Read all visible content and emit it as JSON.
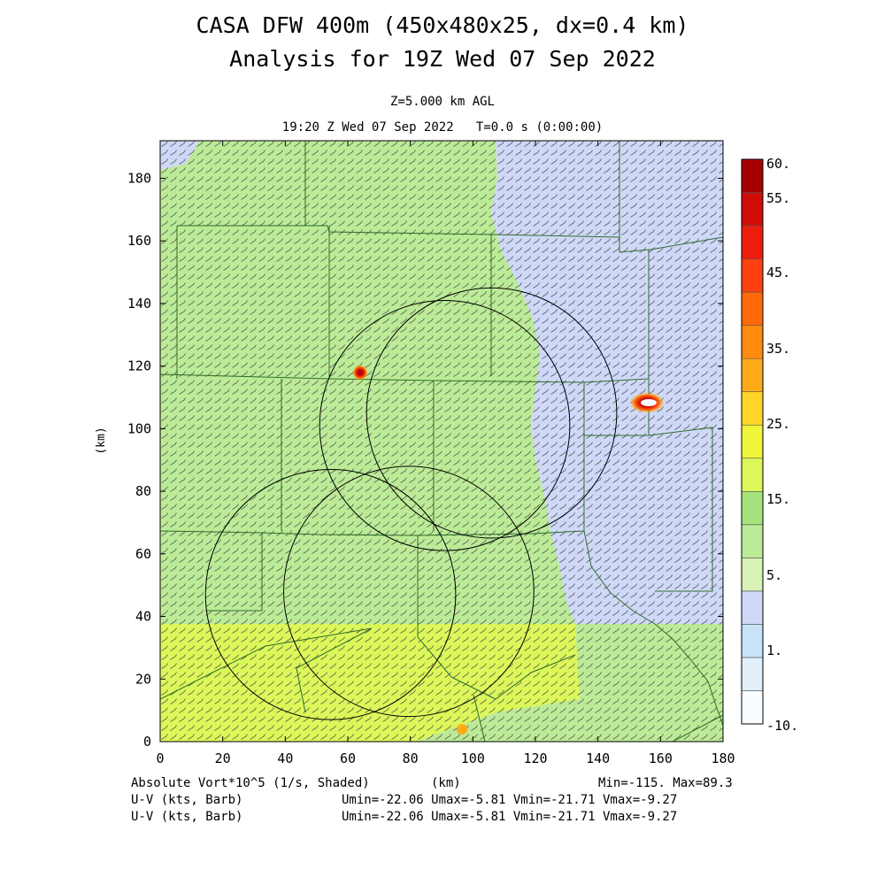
{
  "header": {
    "title_line1": "CASA DFW 400m (450x480x25, dx=0.4 km)",
    "title_line2": "Analysis for 19Z Wed 07 Sep 2022",
    "level": "Z=5.000 km AGL",
    "valid_time": "19:20 Z Wed 07 Sep 2022   T=0.0 s (0:00:00)"
  },
  "footer": {
    "field1": "Absolute Vort*10^5 (1/s, Shaded)",
    "xunit": "(km)",
    "minmax": "Min=-115. Max=89.3",
    "field2": "U-V (kts, Barb)",
    "field3": "U-V (kts, Barb)",
    "stats2": "Umin=-22.06 Umax=-5.81 Vmin=-21.71 Vmax=-9.27",
    "stats3": "Umin=-22.06 Umax=-5.81 Vmin=-21.71 Vmax=-9.27"
  },
  "chart_data": {
    "type": "heatmap",
    "xlabel": "(km)",
    "ylabel": "(km)",
    "xlim": [
      0,
      180
    ],
    "ylim": [
      0,
      192
    ],
    "xticks": [
      "0",
      "20",
      "40",
      "60",
      "80",
      "100",
      "120",
      "140",
      "160",
      "180"
    ],
    "yticks": [
      "0",
      "20",
      "40",
      "60",
      "80",
      "100",
      "120",
      "140",
      "160",
      "180"
    ],
    "colorbar": {
      "labels": [
        "60.",
        "55.",
        "45.",
        "35.",
        "25.",
        "15.",
        "5.",
        "1.",
        "-10."
      ],
      "colors": [
        "#fafdff",
        "#e1f0fb",
        "#c8e3f7",
        "#cfd8f7",
        "#d7f3b7",
        "#bceb97",
        "#a6e37c",
        "#dcf75a",
        "#eef53a",
        "#ffd52a",
        "#ffaa1a",
        "#ff8a10",
        "#ff6a08",
        "#ff4010",
        "#ee1c0c",
        "#d00c08",
        "#a80000"
      ]
    },
    "range_rings": [
      {
        "center_km": [
          54.5,
          47
        ],
        "radius_km": 40
      },
      {
        "center_km": [
          79.5,
          48
        ],
        "radius_km": 40
      },
      {
        "center_km": [
          91,
          101
        ],
        "radius_km": 40
      },
      {
        "center_km": [
          106,
          105
        ],
        "radius_km": 40
      }
    ],
    "regions": [
      {
        "name": "base green",
        "value_band": "5 to 15",
        "color": "#bceb97"
      },
      {
        "name": "northeast light-blue area",
        "value_band": "1 to 5",
        "color": "#cfd8f7"
      },
      {
        "name": "southwest yellow-green area",
        "value_band": "15 to 25",
        "color": "#dcf75a"
      }
    ],
    "features": [
      {
        "label": "max vorticity core near (64,118)",
        "x": 64,
        "y": 118,
        "value": 60
      },
      {
        "label": "max vorticity core near (154,108)",
        "x": 154,
        "y": 108,
        "value": 60
      },
      {
        "label": "small positive core near (97,4)",
        "x": 97,
        "y": 4,
        "value": 25
      }
    ],
    "wind": {
      "u_min": -22.06,
      "u_max": -5.81,
      "v_min": -21.71,
      "v_max": -9.27,
      "units": "kts"
    }
  }
}
